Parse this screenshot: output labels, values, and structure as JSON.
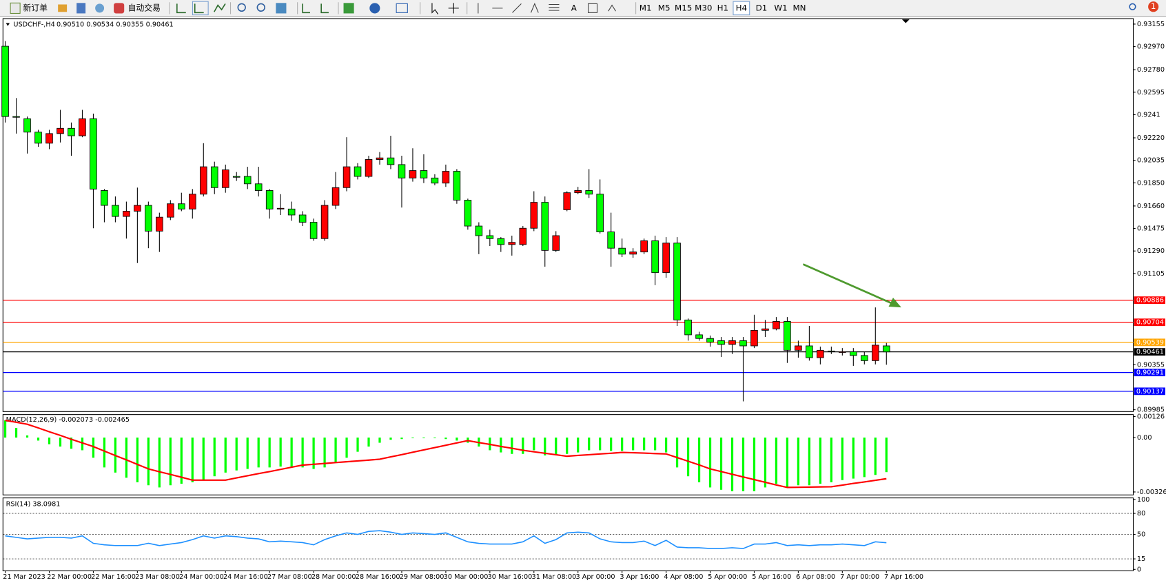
{
  "toolbar": {
    "new_order": "新订单",
    "auto_trading": "自动交易",
    "timeframes": [
      "M1",
      "M5",
      "M15",
      "M30",
      "H1",
      "H4",
      "D1",
      "W1",
      "MN"
    ],
    "active_timeframe": "H4",
    "notification_count": "1"
  },
  "chart_data": [
    {
      "type": "candlestick",
      "title": "USDCHF-,H4",
      "subtitle": "0.90510 0.90534 0.90355 0.90461",
      "categories": [
        "21 Mar 2023",
        null,
        null,
        null,
        "22 Mar 00:00",
        null,
        null,
        null,
        "22 Mar 16:00",
        null,
        null,
        null,
        "23 Mar 08:00",
        null,
        null,
        null,
        "24 Mar 00:00",
        null,
        null,
        null,
        "24 Mar 16:00",
        null,
        null,
        null,
        "27 Mar 08:00",
        null,
        null,
        null,
        "28 Mar 00:00",
        null,
        null,
        null,
        "28 Mar 16:00",
        null,
        null,
        null,
        "29 Mar 08:00",
        null,
        null,
        null,
        "30 Mar 00:00",
        null,
        null,
        null,
        "30 Mar 16:00",
        null,
        null,
        null,
        "31 Mar 08:00",
        null,
        null,
        null,
        "3 Apr 00:00",
        null,
        null,
        null,
        "3 Apr 16:00",
        null,
        null,
        null,
        "4 Apr 08:00",
        null,
        null,
        null,
        "5 Apr 00:00",
        null,
        null,
        null,
        "5 Apr 16:00",
        null,
        null,
        null,
        "6 Apr 08:00",
        null,
        null,
        null,
        "7 Apr 00:00",
        null,
        null,
        null,
        "7 Apr 16:00"
      ],
      "open": [
        0.92973,
        0.92395,
        0.92377,
        0.92267,
        0.92176,
        0.92255,
        0.92298,
        0.92237,
        0.92377,
        0.91787,
        0.91665,
        0.91574,
        0.91617,
        0.91665,
        0.91453,
        0.91568,
        0.91678,
        0.91635,
        0.91757,
        0.91982,
        0.91811,
        0.91903,
        0.91903,
        0.91842,
        0.91787,
        0.91641,
        0.91635,
        0.91586,
        0.91526,
        0.91392,
        0.91665,
        0.91811,
        0.91982,
        0.91903,
        0.92042,
        0.92055,
        0.92,
        0.9189,
        0.91951,
        0.9189,
        0.91848,
        0.91945,
        0.91708,
        0.91495,
        0.91416,
        0.91392,
        0.91343,
        0.91343,
        0.91477,
        0.9169,
        0.91295,
        0.91629,
        0.91769,
        0.91787,
        0.91757,
        0.91447,
        0.91313,
        0.91264,
        0.91282,
        0.91374,
        0.91112,
        0.91355,
        0.90723,
        0.90601,
        0.90571,
        0.90553,
        0.90522,
        0.90553,
        0.9051,
        0.90638,
        0.9065,
        0.90711,
        0.90474,
        0.9051,
        0.90413,
        0.90468,
        0.90462,
        0.90462,
        0.90431,
        0.90389,
        0.9051
      ],
      "high": [
        0.93015,
        0.92547,
        0.92395,
        0.92286,
        0.92286,
        0.9245,
        0.92346,
        0.9245,
        0.92419,
        0.91799,
        0.91738,
        0.91696,
        0.91811,
        0.91696,
        0.91605,
        0.91708,
        0.91769,
        0.91799,
        0.92176,
        0.92024,
        0.92,
        0.91939,
        0.91982,
        0.91982,
        0.91799,
        0.91757,
        0.91696,
        0.91617,
        0.91556,
        0.91708,
        0.91939,
        0.92225,
        0.92012,
        0.92073,
        0.92103,
        0.92237,
        0.92073,
        0.92134,
        0.92085,
        0.91921,
        0.92,
        0.91963,
        0.9172,
        0.91526,
        0.91465,
        0.91404,
        0.91416,
        0.91495,
        0.91781,
        0.91738,
        0.91453,
        0.91781,
        0.91817,
        0.91963,
        0.91878,
        0.91605,
        0.91392,
        0.91313,
        0.91392,
        0.91416,
        0.91404,
        0.91404,
        0.90735,
        0.90626,
        0.90595,
        0.90583,
        0.90583,
        0.90583,
        0.90766,
        0.90723,
        0.90747,
        0.90747,
        0.90553,
        0.90674,
        0.90504,
        0.90504,
        0.90492,
        0.90492,
        0.90462,
        0.90826,
        0.90534
      ],
      "low": [
        0.92346,
        0.92255,
        0.92091,
        0.92146,
        0.92127,
        0.92182,
        0.92073,
        0.92225,
        0.91477,
        0.91526,
        0.91526,
        0.91392,
        0.91191,
        0.91313,
        0.91282,
        0.91544,
        0.91617,
        0.91556,
        0.91738,
        0.91757,
        0.91769,
        0.91866,
        0.91799,
        0.91738,
        0.91556,
        0.91586,
        0.91538,
        0.91495,
        0.91374,
        0.91374,
        0.91635,
        0.91781,
        0.91878,
        0.9189,
        0.92,
        0.91963,
        0.91647,
        0.9186,
        0.91848,
        0.9183,
        0.91817,
        0.91678,
        0.91465,
        0.91264,
        0.91331,
        0.91282,
        0.91252,
        0.91331,
        0.91453,
        0.91161,
        0.91282,
        0.91617,
        0.91757,
        0.91726,
        0.91434,
        0.91161,
        0.9124,
        0.91234,
        0.91264,
        0.91009,
        0.9107,
        0.90674,
        0.90553,
        0.90553,
        0.90504,
        0.90419,
        0.90443,
        0.90054,
        0.90492,
        0.90583,
        0.90638,
        0.9037,
        0.90413,
        0.90389,
        0.90358,
        0.90443,
        0.90431,
        0.90346,
        0.90358,
        0.90358,
        0.90355
      ],
      "close": [
        0.92395,
        0.92389,
        0.92267,
        0.92176,
        0.92255,
        0.92298,
        0.92237,
        0.92377,
        0.91799,
        0.91665,
        0.91574,
        0.91617,
        0.91665,
        0.91453,
        0.91568,
        0.91678,
        0.91635,
        0.91757,
        0.91982,
        0.91811,
        0.91957,
        0.91896,
        0.91842,
        0.91787,
        0.91635,
        0.91641,
        0.91586,
        0.91526,
        0.91392,
        0.91665,
        0.91811,
        0.91982,
        0.91903,
        0.92042,
        0.92055,
        0.92,
        0.9189,
        0.91951,
        0.9189,
        0.91848,
        0.91945,
        0.91708,
        0.91495,
        0.91416,
        0.91392,
        0.91343,
        0.91361,
        0.91477,
        0.9169,
        0.91295,
        0.91416,
        0.91769,
        0.91787,
        0.91757,
        0.91447,
        0.91313,
        0.91264,
        0.91282,
        0.91374,
        0.91112,
        0.91355,
        0.90723,
        0.90601,
        0.90571,
        0.90541,
        0.90522,
        0.90553,
        0.9051,
        0.90638,
        0.9065,
        0.90711,
        0.90474,
        0.9051,
        0.90413,
        0.90474,
        0.90462,
        0.90462,
        0.90431,
        0.90389,
        0.90516,
        0.90461
      ],
      "up_color": "#ff0000",
      "down_color": "#00ff00",
      "ylim": [
        0.8997,
        0.932
      ],
      "yticks": [
        0.93155,
        {
          "value": 0.9297,
          "label": "0.92970"
        },
        {
          "value": 0.9278,
          "label": "0.92780"
        },
        0.92595,
        0.9241,
        {
          "value": 0.9222,
          "label": "0.92220"
        },
        0.92035,
        {
          "value": 0.9185,
          "label": "0.91850"
        },
        {
          "value": 0.9166,
          "label": "0.91660"
        },
        0.91475,
        {
          "value": 0.9129,
          "label": "0.91290"
        },
        0.91105,
        0.90355,
        0.89985
      ],
      "hlines": [
        {
          "value": 0.90886,
          "color": "#ff0000"
        },
        {
          "value": 0.90704,
          "color": "#ff0000"
        },
        {
          "value": 0.90539,
          "color": "#ffa500"
        },
        {
          "value": 0.90461,
          "color": "#000000"
        },
        {
          "value": 0.90291,
          "color": "#0000ff"
        },
        {
          "value": 0.90137,
          "color": "#0000ff"
        }
      ]
    },
    {
      "type": "macd",
      "title": "MACD(12,26,9) -0.002073 -0.002465",
      "histogram": {
        "color": "#00ff00",
        "values": [
          0.00103,
          0.00058,
          0.00013,
          -0.00018,
          -0.0004,
          -0.00054,
          -0.00067,
          -0.00076,
          -0.00121,
          -0.00179,
          -0.0021,
          -0.00241,
          -0.00268,
          -0.00286,
          -0.00299,
          -0.00286,
          -0.00277,
          -0.00268,
          -0.00255,
          -0.00232,
          -0.0021,
          -0.00197,
          -0.00188,
          -0.00179,
          -0.00179,
          -0.00174,
          -0.00179,
          -0.00179,
          -0.00188,
          -0.00179,
          -0.00152,
          -0.00121,
          -0.00085,
          -0.00054,
          -0.00031,
          -0.00013,
          -9e-05,
          -4e-05,
          -4e-05,
          -4e-05,
          -9e-05,
          -0.00018,
          -0.00031,
          -0.00054,
          -0.00076,
          -0.00089,
          -0.00098,
          -0.00098,
          -0.00076,
          -0.00107,
          -0.00107,
          -0.00098,
          -0.00089,
          -0.00076,
          -0.00076,
          -0.0008,
          -0.0008,
          -0.00076,
          -0.00076,
          -0.00076,
          -0.00089,
          -0.00179,
          -0.00232,
          -0.00268,
          -0.00299,
          -0.00313,
          -0.00322,
          -0.00322,
          -0.00322,
          -0.00299,
          -0.00277,
          -0.00299,
          -0.00286,
          -0.00286,
          -0.00277,
          -0.00268,
          -0.00255,
          -0.00246,
          -0.00237,
          -0.00224,
          -0.002073
        ]
      },
      "signal": {
        "color": "#ff0000",
        "values": [
          0.00103,
          0.00092,
          0.0008,
          0.00058,
          0.00035,
          0.00013,
          -0.0001,
          -0.00032,
          -0.00054,
          -0.00081,
          -0.00108,
          -0.00134,
          -0.00161,
          -0.00188,
          -0.00205,
          -0.00221,
          -0.00238,
          -0.00255,
          -0.00255,
          -0.00255,
          -0.00255,
          -0.00242,
          -0.00229,
          -0.00216,
          -0.00204,
          -0.00191,
          -0.00178,
          -0.00165,
          -0.0016,
          -0.00155,
          -0.0015,
          -0.00145,
          -0.0014,
          -0.00135,
          -0.0013,
          -0.00116,
          -0.00102,
          -0.00088,
          -0.00074,
          -0.0006,
          -0.00046,
          -0.00032,
          -0.00018,
          -0.0003,
          -0.00041,
          -0.00053,
          -0.00064,
          -0.00076,
          -0.00085,
          -0.00094,
          -0.00103,
          -0.00112,
          -0.00107,
          -0.00103,
          -0.00098,
          -0.00094,
          -0.00089,
          -0.00091,
          -0.00093,
          -0.00096,
          -0.00098,
          -0.0012,
          -0.00142,
          -0.00164,
          -0.00188,
          -0.00204,
          -0.0022,
          -0.00236,
          -0.00252,
          -0.00268,
          -0.00284,
          -0.00299,
          -0.00298,
          -0.00297,
          -0.00296,
          -0.00295,
          -0.00285,
          -0.00275,
          -0.00266,
          -0.00256,
          -0.002465
        ]
      },
      "ylim": [
        -0.00344,
        0.00138
      ],
      "yticks": [
        0.00126,
        {
          "value": 0,
          "label": "0.00"
        },
        -0.003261
      ]
    },
    {
      "type": "line",
      "title": "RSI(14) 38.0981",
      "color": "#1e90ff",
      "values": [
        47.9,
        45.7,
        43.6,
        44.7,
        45.7,
        45.7,
        44.7,
        47.9,
        37.2,
        35.1,
        34.0,
        34.0,
        34.0,
        37.2,
        34.0,
        36.2,
        38.3,
        42.6,
        47.9,
        44.7,
        47.9,
        46.8,
        44.7,
        43.6,
        39.4,
        40.4,
        39.4,
        38.3,
        35.1,
        42.6,
        47.9,
        52.1,
        50.0,
        54.3,
        55.3,
        53.2,
        50.0,
        52.1,
        51.1,
        50.0,
        52.1,
        45.7,
        39.4,
        37.2,
        36.2,
        36.2,
        36.2,
        39.4,
        47.9,
        37.2,
        42.6,
        52.1,
        53.2,
        52.1,
        43.6,
        39.4,
        38.3,
        38.3,
        40.4,
        34.0,
        41.5,
        31.9,
        30.9,
        30.9,
        29.8,
        29.8,
        30.9,
        29.8,
        36.2,
        36.2,
        38.3,
        34.0,
        35.1,
        34.0,
        35.1,
        35.1,
        36.2,
        35.1,
        34.0,
        39.4,
        38.0981
      ],
      "ylim": [
        0,
        100
      ],
      "yticks": [
        100,
        80,
        50,
        15,
        0
      ]
    }
  ]
}
